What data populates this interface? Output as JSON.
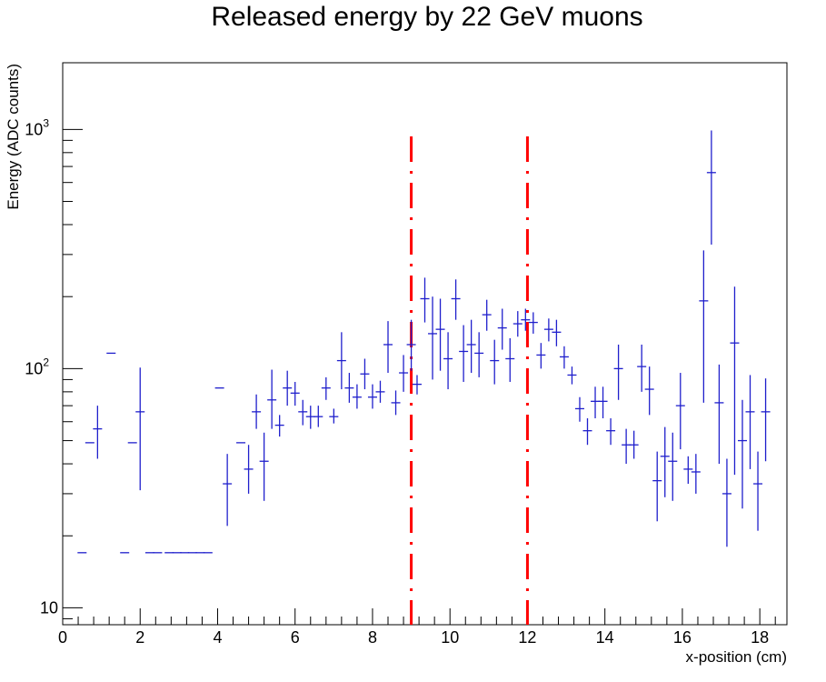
{
  "chart_data": {
    "type": "scatter",
    "title": "Released energy by 22 GeV muons",
    "xlabel": "x-position (cm)",
    "ylabel": "Energy (ADC counts)",
    "xlim": [
      0,
      18.7
    ],
    "ylim": [
      8.5,
      1900
    ],
    "yscale": "log",
    "x_ticks": [
      "0",
      "2",
      "4",
      "6",
      "8",
      "10",
      "12",
      "14",
      "16",
      "18"
    ],
    "y_ticks": [
      "10",
      "10^2",
      "10^3"
    ],
    "grid": false,
    "legend": "none",
    "marker_color": "#1f1fcc",
    "line_color": "#ff0000",
    "vertical_lines": [
      9,
      12
    ],
    "points": [
      {
        "x": 0.5,
        "y": 17
      },
      {
        "x": 0.7,
        "y": 49
      },
      {
        "x": 0.9,
        "y": 56,
        "yerr_low": 42,
        "yerr_high": 70
      },
      {
        "x": 1.25,
        "y": 116
      },
      {
        "x": 1.6,
        "y": 17
      },
      {
        "x": 1.8,
        "y": 49
      },
      {
        "x": 2.0,
        "y": 66,
        "yerr_low": 31,
        "yerr_high": 101
      },
      {
        "x": 2.25,
        "y": 17
      },
      {
        "x": 2.45,
        "y": 17
      },
      {
        "x": 2.75,
        "y": 17
      },
      {
        "x": 2.95,
        "y": 17
      },
      {
        "x": 3.15,
        "y": 17
      },
      {
        "x": 3.35,
        "y": 17
      },
      {
        "x": 3.55,
        "y": 17
      },
      {
        "x": 3.75,
        "y": 17
      },
      {
        "x": 4.05,
        "y": 83
      },
      {
        "x": 4.25,
        "y": 33,
        "yerr_low": 22,
        "yerr_high": 44
      },
      {
        "x": 4.6,
        "y": 49
      },
      {
        "x": 4.8,
        "y": 38,
        "yerr_low": 30,
        "yerr_high": 48
      },
      {
        "x": 5.0,
        "y": 66,
        "yerr_low": 56,
        "yerr_high": 78
      },
      {
        "x": 5.2,
        "y": 41,
        "yerr_low": 28,
        "yerr_high": 54
      },
      {
        "x": 5.4,
        "y": 74,
        "yerr_low": 56,
        "yerr_high": 99
      },
      {
        "x": 5.6,
        "y": 58,
        "yerr_low": 52,
        "yerr_high": 64
      },
      {
        "x": 5.8,
        "y": 83,
        "yerr_low": 70,
        "yerr_high": 98
      },
      {
        "x": 6.0,
        "y": 79,
        "yerr_low": 70,
        "yerr_high": 88
      },
      {
        "x": 6.2,
        "y": 66,
        "yerr_low": 58,
        "yerr_high": 74
      },
      {
        "x": 6.4,
        "y": 63,
        "yerr_low": 56,
        "yerr_high": 70
      },
      {
        "x": 6.6,
        "y": 63,
        "yerr_low": 57,
        "yerr_high": 70
      },
      {
        "x": 6.8,
        "y": 83,
        "yerr_low": 74,
        "yerr_high": 92
      },
      {
        "x": 7.0,
        "y": 63,
        "yerr_low": 59,
        "yerr_high": 68
      },
      {
        "x": 7.2,
        "y": 108,
        "yerr_low": 82,
        "yerr_high": 142
      },
      {
        "x": 7.4,
        "y": 83,
        "yerr_low": 72,
        "yerr_high": 96
      },
      {
        "x": 7.6,
        "y": 76,
        "yerr_low": 68,
        "yerr_high": 86
      },
      {
        "x": 7.8,
        "y": 95,
        "yerr_low": 82,
        "yerr_high": 110
      },
      {
        "x": 8.0,
        "y": 76,
        "yerr_low": 68,
        "yerr_high": 86
      },
      {
        "x": 8.2,
        "y": 80,
        "yerr_low": 72,
        "yerr_high": 89
      },
      {
        "x": 8.4,
        "y": 126,
        "yerr_low": 96,
        "yerr_high": 158
      },
      {
        "x": 8.6,
        "y": 72,
        "yerr_low": 64,
        "yerr_high": 81
      },
      {
        "x": 8.8,
        "y": 96,
        "yerr_low": 80,
        "yerr_high": 114
      },
      {
        "x": 9.0,
        "y": 126,
        "yerr_low": 98,
        "yerr_high": 160
      },
      {
        "x": 9.15,
        "y": 86,
        "yerr_low": 78,
        "yerr_high": 94
      },
      {
        "x": 9.35,
        "y": 196,
        "yerr_low": 156,
        "yerr_high": 240
      },
      {
        "x": 9.55,
        "y": 140,
        "yerr_low": 90,
        "yerr_high": 200
      },
      {
        "x": 9.75,
        "y": 146,
        "yerr_low": 98,
        "yerr_high": 196
      },
      {
        "x": 9.95,
        "y": 110,
        "yerr_low": 82,
        "yerr_high": 142
      },
      {
        "x": 10.15,
        "y": 196,
        "yerr_low": 160,
        "yerr_high": 236
      },
      {
        "x": 10.35,
        "y": 118,
        "yerr_low": 88,
        "yerr_high": 152
      },
      {
        "x": 10.55,
        "y": 126,
        "yerr_low": 96,
        "yerr_high": 160
      },
      {
        "x": 10.75,
        "y": 116,
        "yerr_low": 92,
        "yerr_high": 142
      },
      {
        "x": 10.95,
        "y": 168,
        "yerr_low": 144,
        "yerr_high": 194
      },
      {
        "x": 11.15,
        "y": 108,
        "yerr_low": 86,
        "yerr_high": 132
      },
      {
        "x": 11.35,
        "y": 148,
        "yerr_low": 120,
        "yerr_high": 178
      },
      {
        "x": 11.55,
        "y": 110,
        "yerr_low": 88,
        "yerr_high": 134
      },
      {
        "x": 11.75,
        "y": 154,
        "yerr_low": 136,
        "yerr_high": 174
      },
      {
        "x": 11.95,
        "y": 160,
        "yerr_low": 144,
        "yerr_high": 178
      },
      {
        "x": 12.15,
        "y": 156,
        "yerr_low": 140,
        "yerr_high": 172
      },
      {
        "x": 12.35,
        "y": 114,
        "yerr_low": 100,
        "yerr_high": 128
      },
      {
        "x": 12.55,
        "y": 146,
        "yerr_low": 130,
        "yerr_high": 162
      },
      {
        "x": 12.75,
        "y": 142,
        "yerr_low": 124,
        "yerr_high": 160
      },
      {
        "x": 12.95,
        "y": 112,
        "yerr_low": 100,
        "yerr_high": 124
      },
      {
        "x": 13.15,
        "y": 94,
        "yerr_low": 86,
        "yerr_high": 102
      },
      {
        "x": 13.35,
        "y": 68,
        "yerr_low": 60,
        "yerr_high": 76
      },
      {
        "x": 13.55,
        "y": 55,
        "yerr_low": 48,
        "yerr_high": 62
      },
      {
        "x": 13.75,
        "y": 73,
        "yerr_low": 62,
        "yerr_high": 84
      },
      {
        "x": 13.95,
        "y": 73,
        "yerr_low": 62,
        "yerr_high": 84
      },
      {
        "x": 14.15,
        "y": 55,
        "yerr_low": 48,
        "yerr_high": 62
      },
      {
        "x": 14.35,
        "y": 100,
        "yerr_low": 74,
        "yerr_high": 126
      },
      {
        "x": 14.55,
        "y": 48,
        "yerr_low": 40,
        "yerr_high": 56
      },
      {
        "x": 14.75,
        "y": 48,
        "yerr_low": 42,
        "yerr_high": 55
      },
      {
        "x": 14.95,
        "y": 102,
        "yerr_low": 80,
        "yerr_high": 126
      },
      {
        "x": 15.15,
        "y": 82,
        "yerr_low": 64,
        "yerr_high": 102
      },
      {
        "x": 15.35,
        "y": 34,
        "yerr_low": 23,
        "yerr_high": 45
      },
      {
        "x": 15.55,
        "y": 43,
        "yerr_low": 29,
        "yerr_high": 57
      },
      {
        "x": 15.75,
        "y": 41,
        "yerr_low": 28,
        "yerr_high": 54
      },
      {
        "x": 15.95,
        "y": 70,
        "yerr_low": 46,
        "yerr_high": 96
      },
      {
        "x": 16.15,
        "y": 38,
        "yerr_low": 33,
        "yerr_high": 43
      },
      {
        "x": 16.35,
        "y": 37,
        "yerr_low": 30,
        "yerr_high": 44
      },
      {
        "x": 16.55,
        "y": 192,
        "yerr_low": 72,
        "yerr_high": 312
      },
      {
        "x": 16.75,
        "y": 660,
        "yerr_low": 330,
        "yerr_high": 990
      },
      {
        "x": 16.95,
        "y": 72,
        "yerr_low": 40,
        "yerr_high": 104
      },
      {
        "x": 17.15,
        "y": 30,
        "yerr_low": 18,
        "yerr_high": 42
      },
      {
        "x": 17.35,
        "y": 128,
        "yerr_low": 36,
        "yerr_high": 220
      },
      {
        "x": 17.55,
        "y": 50,
        "yerr_low": 26,
        "yerr_high": 74
      },
      {
        "x": 17.75,
        "y": 66,
        "yerr_low": 38,
        "yerr_high": 94
      },
      {
        "x": 17.95,
        "y": 33,
        "yerr_low": 21,
        "yerr_high": 45
      },
      {
        "x": 18.15,
        "y": 66,
        "yerr_low": 41,
        "yerr_high": 91
      }
    ]
  }
}
